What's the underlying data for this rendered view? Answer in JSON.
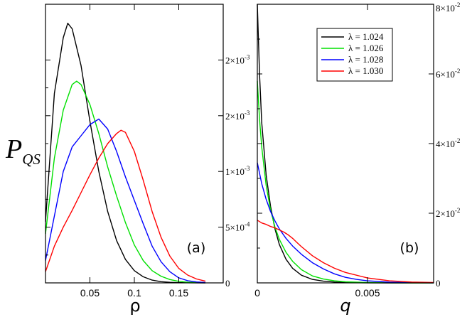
{
  "figure": {
    "ylabel_main": "P",
    "ylabel_sub": "QS"
  },
  "chart_data": [
    {
      "panel": "(a)",
      "type": "line",
      "xlabel": "ρ",
      "xlim": [
        0.0,
        0.2
      ],
      "ylim": [
        0,
        0.0025
      ],
      "x_ticks": [
        0.05,
        0.1,
        0.15
      ],
      "x_tick_labels": [
        "0.05",
        "0.1",
        "0.15"
      ],
      "y_ticks": [
        0,
        0.0005,
        0.001,
        0.0015,
        0.002
      ],
      "right_tick_labels": [
        "0",
        "5×10",
        "1×10",
        "2×10",
        "2×10"
      ],
      "right_tick_exponents": [
        "",
        "-4",
        "-3",
        "-3",
        "-3"
      ],
      "series": [
        {
          "name": "λ = 1.024",
          "color": "#000000",
          "x": [
            0.0,
            0.01,
            0.02,
            0.025,
            0.03,
            0.04,
            0.05,
            0.06,
            0.07,
            0.08,
            0.09,
            0.1,
            0.11,
            0.12,
            0.13,
            0.14,
            0.15,
            0.16,
            0.17,
            0.18
          ],
          "y": [
            0.00055,
            0.0017,
            0.0022,
            0.00233,
            0.00228,
            0.00195,
            0.00145,
            0.001,
            0.00064,
            0.00038,
            0.00021,
            0.00011,
            5.5e-05,
            2.5e-05,
            1.1e-05,
            5e-06,
            2e-06,
            1e-06,
            4e-07,
            1e-07
          ]
        },
        {
          "name": "λ = 1.026",
          "color": "#00e000",
          "x": [
            0.0,
            0.01,
            0.02,
            0.03,
            0.035,
            0.04,
            0.05,
            0.06,
            0.07,
            0.08,
            0.09,
            0.1,
            0.11,
            0.12,
            0.13,
            0.14,
            0.15,
            0.16,
            0.17,
            0.18
          ],
          "y": [
            0.00044,
            0.00112,
            0.00155,
            0.00178,
            0.00181,
            0.00178,
            0.0016,
            0.00134,
            0.00104,
            0.00078,
            0.00054,
            0.00034,
            0.0002,
            0.00011,
            6e-05,
            3e-05,
            1.4e-05,
            6e-06,
            2.5e-06,
            1e-06
          ]
        },
        {
          "name": "λ = 1.028",
          "color": "#0000ff",
          "x": [
            0.0,
            0.01,
            0.02,
            0.03,
            0.04,
            0.05,
            0.06,
            0.07,
            0.08,
            0.09,
            0.1,
            0.11,
            0.12,
            0.13,
            0.14,
            0.15,
            0.16,
            0.17,
            0.18
          ],
          "y": [
            0.0002,
            0.0006,
            0.001,
            0.00122,
            0.00132,
            0.00142,
            0.00147,
            0.00138,
            0.00118,
            0.00095,
            0.00074,
            0.00053,
            0.00033,
            0.00019,
            0.0001,
            4.5e-05,
            2e-05,
            8e-06,
            3e-06
          ]
        },
        {
          "name": "λ = 1.030",
          "color": "#ff0000",
          "x": [
            0.0,
            0.01,
            0.02,
            0.03,
            0.04,
            0.05,
            0.06,
            0.07,
            0.08,
            0.085,
            0.09,
            0.1,
            0.11,
            0.12,
            0.13,
            0.14,
            0.15,
            0.16,
            0.17,
            0.18
          ],
          "y": [
            0.0001,
            0.00033,
            0.0005,
            0.00065,
            0.00081,
            0.00097,
            0.00112,
            0.00125,
            0.00134,
            0.00137,
            0.00135,
            0.00118,
            0.00092,
            0.00064,
            0.00041,
            0.00024,
            0.00013,
            7e-05,
            3.5e-05,
            1.5e-05
          ]
        }
      ]
    },
    {
      "panel": "(b)",
      "type": "line",
      "xlabel": "q",
      "xlim": [
        0.0,
        0.008
      ],
      "ylim": [
        0,
        0.08
      ],
      "x_ticks": [
        0,
        0.005
      ],
      "x_tick_labels": [
        "0",
        "0.005"
      ],
      "y_ticks": [
        0,
        0.02,
        0.04,
        0.06,
        0.08
      ],
      "right_tick_labels": [
        "0",
        "2×10",
        "4×10",
        "6×10",
        "8×10"
      ],
      "right_tick_exponents": [
        "",
        "-2",
        "-2",
        "-2",
        "-2"
      ],
      "legend_position": "top-right",
      "series": [
        {
          "name": "λ = 1.024",
          "color": "#000000",
          "x": [
            0.0,
            0.0001,
            0.0002,
            0.0004,
            0.0006,
            0.0008,
            0.001,
            0.0013,
            0.0016,
            0.002,
            0.0025,
            0.003,
            0.0035,
            0.004,
            0.005,
            0.006,
            0.007,
            0.008
          ],
          "y": [
            0.08,
            0.06,
            0.046,
            0.031,
            0.022,
            0.0155,
            0.011,
            0.0068,
            0.0042,
            0.0022,
            0.001,
            0.0005,
            0.00025,
            0.00012,
            3e-05,
            1e-05,
            3e-06,
            1e-06
          ]
        },
        {
          "name": "λ = 1.026",
          "color": "#00e000",
          "x": [
            0.0,
            0.0001,
            0.0002,
            0.0004,
            0.0006,
            0.0008,
            0.001,
            0.0013,
            0.0016,
            0.002,
            0.0025,
            0.003,
            0.0035,
            0.004,
            0.005,
            0.006,
            0.007,
            0.008
          ],
          "y": [
            0.058,
            0.047,
            0.039,
            0.028,
            0.021,
            0.016,
            0.0125,
            0.0088,
            0.0062,
            0.0038,
            0.002,
            0.0011,
            0.0006,
            0.0003,
            0.0001,
            3e-05,
            1e-05,
            3e-06
          ]
        },
        {
          "name": "λ = 1.028",
          "color": "#0000ff",
          "x": [
            0.0,
            0.0002,
            0.0004,
            0.0006,
            0.0008,
            0.001,
            0.0013,
            0.0016,
            0.002,
            0.0025,
            0.003,
            0.0035,
            0.004,
            0.0045,
            0.005,
            0.006,
            0.007,
            0.008
          ],
          "y": [
            0.0345,
            0.0285,
            0.024,
            0.0205,
            0.0178,
            0.0155,
            0.0128,
            0.0106,
            0.0082,
            0.0058,
            0.004,
            0.0026,
            0.0016,
            0.001,
            0.0006,
            0.0002,
            6e-05,
            2e-05
          ]
        },
        {
          "name": "λ = 1.030",
          "color": "#ff0000",
          "x": [
            0.0,
            0.0002,
            0.0004,
            0.0006,
            0.0008,
            0.001,
            0.0012,
            0.0014,
            0.0016,
            0.0018,
            0.002,
            0.0025,
            0.003,
            0.0035,
            0.004,
            0.005,
            0.006,
            0.007,
            0.008
          ],
          "y": [
            0.018,
            0.0172,
            0.0168,
            0.0162,
            0.0158,
            0.0152,
            0.0146,
            0.0138,
            0.0128,
            0.0116,
            0.0104,
            0.0078,
            0.0058,
            0.0042,
            0.003,
            0.0014,
            0.0006,
            0.00025,
            0.0001
          ]
        }
      ]
    }
  ]
}
